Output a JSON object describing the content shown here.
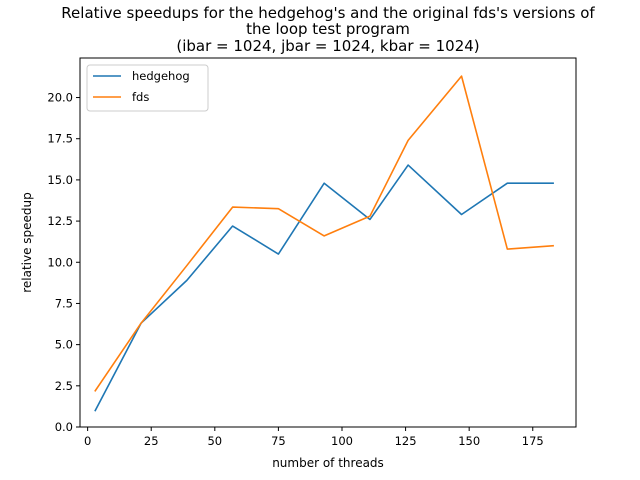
{
  "chart_data": {
    "type": "line",
    "title_lines": [
      "Relative speedups for the hedgehog's and the original fds's versions of",
      "the loop test program",
      "(ibar = 1024, jbar = 1024, kbar = 1024)"
    ],
    "xlabel": "number of threads",
    "ylabel": "relative speedup",
    "xlim": [
      -3.0,
      192.0
    ],
    "ylim": [
      0,
      22.4
    ],
    "xticks": [
      0,
      25,
      50,
      75,
      100,
      125,
      150,
      175
    ],
    "xtick_labels": [
      "0",
      "25",
      "50",
      "75",
      "100",
      "125",
      "150",
      "175"
    ],
    "yticks": [
      0,
      2.5,
      5,
      7.5,
      10,
      12.5,
      15,
      17.5,
      20
    ],
    "ytick_labels": [
      "0.0",
      "2.5",
      "5.0",
      "7.5",
      "10.0",
      "12.5",
      "15.0",
      "17.5",
      "20.0"
    ],
    "grid": false,
    "legend_position": "top-left",
    "x": [
      3,
      21,
      39,
      57,
      75,
      93,
      111,
      126,
      147,
      165,
      183
    ],
    "series": [
      {
        "name": "hedgehog",
        "color": "#1f77b4",
        "values": [
          1.0,
          6.3,
          8.9,
          12.2,
          10.5,
          14.8,
          12.6,
          15.9,
          12.9,
          14.8,
          14.8
        ]
      },
      {
        "name": "fds",
        "color": "#ff7f0e",
        "values": [
          2.2,
          6.3,
          9.8,
          13.35,
          13.25,
          11.6,
          12.8,
          17.4,
          21.3,
          10.8,
          11.0
        ]
      }
    ]
  }
}
